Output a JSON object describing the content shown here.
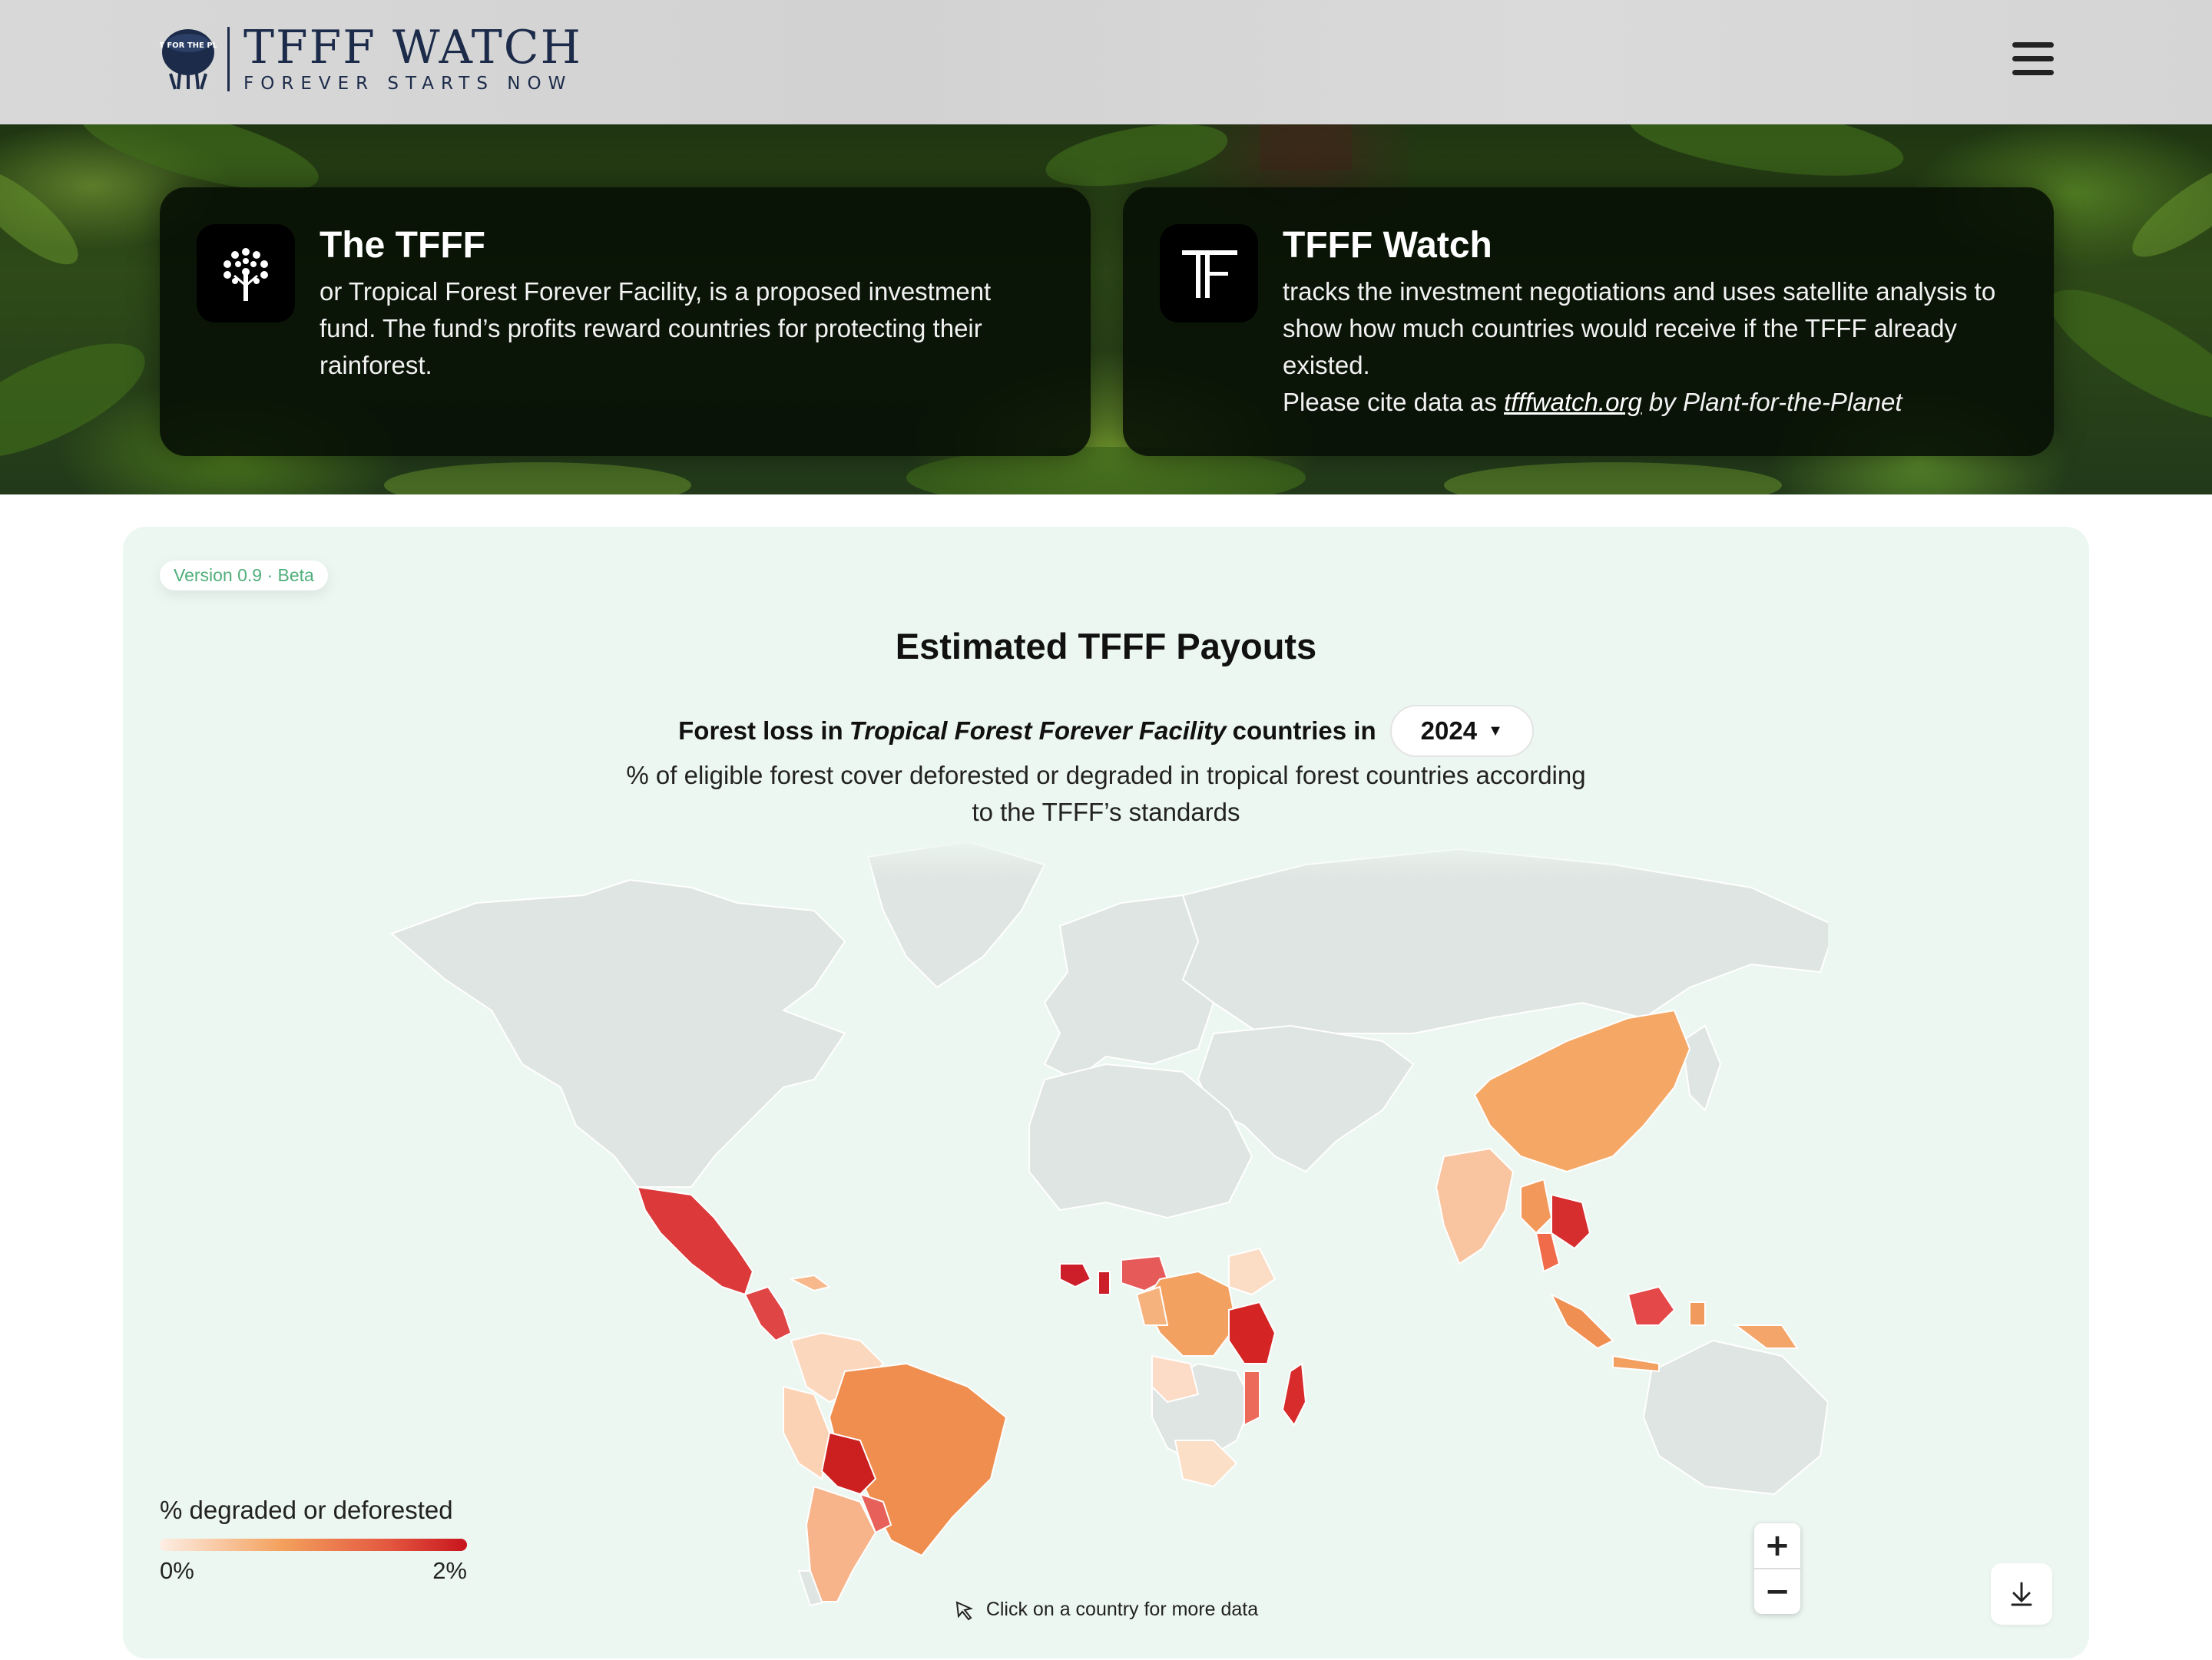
{
  "header": {
    "logo_badge": "PLANT FOR THE PLANET",
    "logo_title": "TFFF WATCH",
    "logo_tagline": "FOREVER STARTS NOW",
    "menu_icon": "hamburger-menu-icon"
  },
  "cards": {
    "tfff": {
      "icon": "tree-icon",
      "title": "The TFFF",
      "body": "or Tropical Forest Forever Facility, is a proposed investment fund. The fund’s profits reward countries for protecting their rainforest."
    },
    "watch": {
      "icon": "tf-monogram-icon",
      "title": "TFFF Watch",
      "body": "tracks the investment negotiations and uses satellite analysis to show how much countries would receive if the TFFF already existed.",
      "cite_prefix": "Please cite data as ",
      "cite_link": "tfffwatch.org",
      "cite_suffix": " by Plant-for-the-Planet"
    }
  },
  "panel": {
    "version": "Version 0.9 · Beta",
    "title": "Estimated TFFF Payouts",
    "subtitle_prefix": "Forest loss in",
    "subtitle_em": "Tropical Forest Forever Facility",
    "subtitle_suffix": "countries in",
    "year": "2024",
    "description": "% of eligible forest cover deforested or degraded in tropical forest countries according to the TFFF’s standards",
    "legend_title": "% degraded or deforested",
    "legend_min": "0%",
    "legend_max": "2%",
    "zoom_in": "+",
    "zoom_out": "−",
    "hint": "Click on a country for more data",
    "download_icon": "download-icon"
  },
  "colors": {
    "panel_bg": "#edf7f1",
    "non_tfff": "#dfe5e2",
    "scale_low": "#fde2cf",
    "scale_mid": "#f0914f",
    "scale_high": "#c8141e",
    "version_text": "#4fae7a",
    "brand_navy": "#1c2b49"
  }
}
